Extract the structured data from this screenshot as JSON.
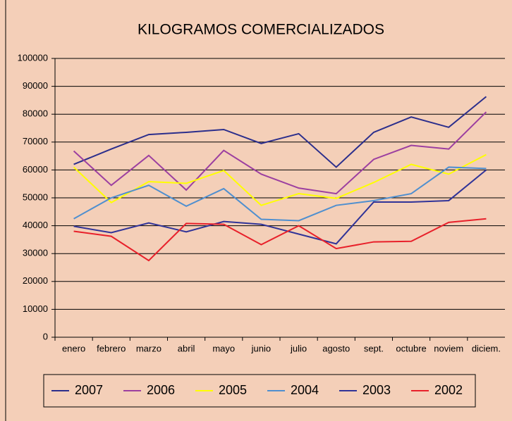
{
  "chart_data": {
    "type": "line",
    "title": "KILOGRAMOS COMERCIALIZADOS",
    "categories": [
      "enero",
      "febrero",
      "marzo",
      "abril",
      "mayo",
      "junio",
      "julio",
      "agosto",
      "sept.",
      "octubre",
      "noviem",
      "diciem."
    ],
    "series": [
      {
        "name": "2007",
        "color": "#2b2e8c",
        "values": [
          62000,
          67500,
          72700,
          73500,
          74500,
          69500,
          73000,
          61000,
          73500,
          79000,
          75300,
          86300
        ]
      },
      {
        "name": "2006",
        "color": "#9c3fa0",
        "values": [
          66800,
          54500,
          65200,
          52800,
          67000,
          58500,
          53500,
          51500,
          63800,
          68800,
          67500,
          80800
        ]
      },
      {
        "name": "2005",
        "color": "#ffff00",
        "values": [
          61000,
          48300,
          55800,
          55200,
          59800,
          47300,
          51500,
          49800,
          55500,
          62000,
          58500,
          65500
        ]
      },
      {
        "name": "2004",
        "color": "#4f8fcf",
        "values": [
          42500,
          50000,
          54500,
          47000,
          53300,
          42300,
          41800,
          47300,
          49000,
          51500,
          61000,
          60500
        ]
      },
      {
        "name": "2003",
        "color": "#303398",
        "values": [
          39800,
          37500,
          41000,
          37800,
          41500,
          40500,
          37000,
          33500,
          48500,
          48500,
          49000,
          60000
        ]
      },
      {
        "name": "2002",
        "color": "#e8202a",
        "values": [
          38000,
          36200,
          27500,
          40800,
          40500,
          33200,
          40000,
          31800,
          34200,
          34400,
          41200,
          42500
        ]
      }
    ],
    "ylim": [
      0,
      100000
    ],
    "yticks": [
      0,
      10000,
      20000,
      30000,
      40000,
      50000,
      60000,
      70000,
      80000,
      90000,
      100000
    ],
    "grid": true,
    "legend": "bottom"
  }
}
